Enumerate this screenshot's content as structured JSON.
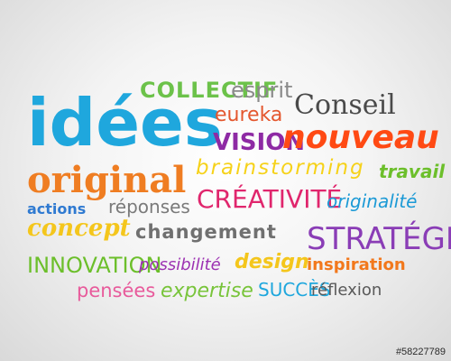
{
  "words": [
    {
      "text": "idées",
      "color": "#1fa7dd"
    },
    {
      "text": "COLLECTIF",
      "color": "#6cc24a"
    },
    {
      "text": "esprit",
      "color": "#8a8a8a"
    },
    {
      "text": "Conseil",
      "color": "#4a4a4a"
    },
    {
      "text": "eureka",
      "color": "#e4572e"
    },
    {
      "text": "VISION",
      "color": "#8e2aa4"
    },
    {
      "text": "nouveau",
      "color": "#ff4a14"
    },
    {
      "text": "original",
      "color": "#ef7d22"
    },
    {
      "text": "brainstorming",
      "color": "#f6d21a"
    },
    {
      "text": "travail",
      "color": "#6cbf2b"
    },
    {
      "text": "actions",
      "color": "#2f7ad1"
    },
    {
      "text": "réponses",
      "color": "#7a7a7a"
    },
    {
      "text": "CRÉATIVITÉ",
      "color": "#e0266d"
    },
    {
      "text": "originalité",
      "color": "#1c9ad6"
    },
    {
      "text": "concept",
      "color": "#f4c61c"
    },
    {
      "text": "changement",
      "color": "#707070"
    },
    {
      "text": "STRATÉGIE",
      "color": "#8a3db6"
    },
    {
      "text": "INNOVATION",
      "color": "#6cbf2b"
    },
    {
      "text": "possibilité",
      "color": "#9c31b2"
    },
    {
      "text": "design",
      "color": "#f4c61c"
    },
    {
      "text": "inspiration",
      "color": "#f2781c"
    },
    {
      "text": "pensées",
      "color": "#e85a9b"
    },
    {
      "text": "expertise",
      "color": "#78c43a"
    },
    {
      "text": "SUCCÈS",
      "color": "#1fa7dd"
    },
    {
      "text": "réflexion",
      "color": "#5a5a5a"
    }
  ],
  "stock_id": "#58227789"
}
